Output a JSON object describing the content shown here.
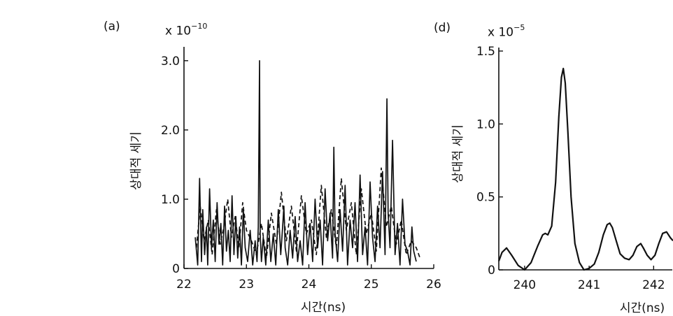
{
  "chart_data": [
    {
      "panel": "(a)",
      "type": "line",
      "exponent_base": "x 10",
      "exponent": "−10",
      "xlabel": "시간(ns)",
      "ylabel": "상대적 세기",
      "xlim": [
        22,
        26
      ],
      "ylim": [
        0,
        3.2
      ],
      "xticks": [
        "22",
        "23",
        "24",
        "25",
        "26"
      ],
      "yticks": [
        "0",
        "1.0",
        "2.0",
        "3.0"
      ],
      "ytick_values": [
        0,
        1.0,
        2.0,
        3.0
      ],
      "series": [
        {
          "style": "solid",
          "x": [
            22.18,
            22.22,
            22.25,
            22.28,
            22.3,
            22.33,
            22.36,
            22.38,
            22.41,
            22.44,
            22.47,
            22.5,
            22.53,
            22.56,
            22.59,
            22.62,
            22.65,
            22.68,
            22.71,
            22.74,
            22.77,
            22.8,
            22.83,
            22.86,
            22.89,
            22.92,
            22.95,
            22.98,
            23.02,
            23.06,
            23.1,
            23.14,
            23.17,
            23.19,
            23.21,
            23.22,
            23.24,
            23.27,
            23.31,
            23.35,
            23.39,
            23.43,
            23.47,
            23.51,
            23.55,
            23.58,
            23.6,
            23.62,
            23.66,
            23.7,
            23.74,
            23.78,
            23.82,
            23.86,
            23.9,
            23.94,
            23.98,
            24.02,
            24.06,
            24.1,
            24.14,
            24.18,
            24.22,
            24.26,
            24.3,
            24.34,
            24.38,
            24.4,
            24.42,
            24.46,
            24.5,
            24.54,
            24.58,
            24.62,
            24.66,
            24.7,
            24.74,
            24.78,
            24.82,
            24.86,
            24.9,
            24.94,
            24.98,
            25.02,
            25.06,
            25.1,
            25.14,
            25.18,
            25.22,
            25.25,
            25.27,
            25.3,
            25.34,
            25.38,
            25.42,
            25.46,
            25.5,
            25.54,
            25.58,
            25.62,
            25.65,
            25.68,
            25.72
          ],
          "y": [
            0.45,
            0.05,
            1.3,
            0.1,
            0.85,
            0.2,
            0.6,
            0.05,
            1.15,
            0.3,
            0.7,
            0.1,
            0.95,
            0.35,
            0.65,
            0.05,
            0.9,
            0.25,
            0.55,
            0.1,
            1.05,
            0.2,
            0.75,
            0.15,
            0.6,
            0.05,
            0.85,
            0.3,
            0.1,
            0.55,
            0.05,
            0.4,
            0.1,
            0.6,
            3.0,
            0.5,
            0.1,
            0.45,
            0.05,
            0.7,
            0.1,
            0.5,
            0.05,
            0.85,
            0.2,
            0.6,
            0.9,
            0.3,
            0.05,
            0.55,
            0.15,
            0.75,
            0.1,
            0.4,
            0.05,
            0.95,
            0.2,
            0.65,
            0.1,
            1.0,
            0.3,
            0.7,
            0.05,
            1.15,
            0.4,
            0.8,
            0.15,
            1.75,
            0.5,
            0.1,
            0.85,
            0.25,
            1.2,
            0.05,
            0.7,
            0.3,
            0.95,
            0.1,
            1.35,
            0.2,
            0.6,
            0.05,
            1.25,
            0.45,
            0.1,
            0.9,
            0.3,
            1.4,
            0.2,
            2.45,
            0.8,
            0.3,
            1.85,
            0.2,
            0.65,
            0.05,
            1.0,
            0.35,
            0.25,
            0.05,
            0.6,
            0.25,
            0.1
          ]
        },
        {
          "style": "dashed",
          "x": [
            22.2,
            22.26,
            22.32,
            22.39,
            22.45,
            22.52,
            22.58,
            22.64,
            22.7,
            22.76,
            22.82,
            22.88,
            22.94,
            23.0,
            23.08,
            23.16,
            23.24,
            23.32,
            23.4,
            23.48,
            23.56,
            23.64,
            23.72,
            23.8,
            23.88,
            23.96,
            24.04,
            24.12,
            24.2,
            24.28,
            24.36,
            24.44,
            24.52,
            24.6,
            24.68,
            24.76,
            24.84,
            24.92,
            25.0,
            25.08,
            25.16,
            25.24,
            25.32,
            25.4,
            25.48,
            25.56,
            25.64,
            25.72,
            25.78
          ],
          "y": [
            0.3,
            0.9,
            0.4,
            0.7,
            0.2,
            0.85,
            0.35,
            0.6,
            1.0,
            0.45,
            0.75,
            0.3,
            0.95,
            0.55,
            0.4,
            0.2,
            0.65,
            0.15,
            0.8,
            0.35,
            1.1,
            0.4,
            0.9,
            0.25,
            1.05,
            0.5,
            0.7,
            0.2,
            1.2,
            0.45,
            0.85,
            0.3,
            1.3,
            0.55,
            0.95,
            0.2,
            1.15,
            0.5,
            0.8,
            0.25,
            1.45,
            0.6,
            0.9,
            0.35,
            0.7,
            0.2,
            0.4,
            0.3,
            0.15
          ]
        }
      ]
    },
    {
      "panel": "(d)",
      "type": "line",
      "exponent_base": "x 10",
      "exponent": "−5",
      "xlabel": "시간(ns)",
      "ylabel": "상대적 세기",
      "xlim": [
        239.6,
        242.3
      ],
      "ylim": [
        0,
        1.5
      ],
      "xticks": [
        "240",
        "241",
        "242"
      ],
      "xtick_values": [
        240,
        241,
        242
      ],
      "yticks": [
        "0",
        "0.5",
        "1.0",
        "1.5"
      ],
      "ytick_values": [
        0,
        0.5,
        1.0,
        1.5
      ],
      "series": [
        {
          "style": "solid",
          "x": [
            239.6,
            239.65,
            239.72,
            239.8,
            239.9,
            240.0,
            240.1,
            240.2,
            240.28,
            240.32,
            240.36,
            240.42,
            240.48,
            240.53,
            240.57,
            240.6,
            240.63,
            240.67,
            240.72,
            240.78,
            240.85,
            240.92,
            241.0,
            241.08,
            241.15,
            241.22,
            241.28,
            241.32,
            241.36,
            241.42,
            241.48,
            241.55,
            241.62,
            241.68,
            241.74,
            241.8,
            241.84,
            241.9,
            241.96,
            242.02,
            242.08,
            242.14,
            242.2,
            242.26,
            242.3
          ],
          "y": [
            0.06,
            0.12,
            0.15,
            0.1,
            0.03,
            0.0,
            0.05,
            0.16,
            0.24,
            0.25,
            0.24,
            0.3,
            0.6,
            1.05,
            1.32,
            1.38,
            1.28,
            0.95,
            0.5,
            0.18,
            0.05,
            0.0,
            0.01,
            0.04,
            0.12,
            0.24,
            0.31,
            0.32,
            0.29,
            0.2,
            0.11,
            0.08,
            0.07,
            0.1,
            0.16,
            0.18,
            0.15,
            0.1,
            0.07,
            0.1,
            0.18,
            0.25,
            0.26,
            0.22,
            0.2
          ]
        }
      ]
    }
  ]
}
